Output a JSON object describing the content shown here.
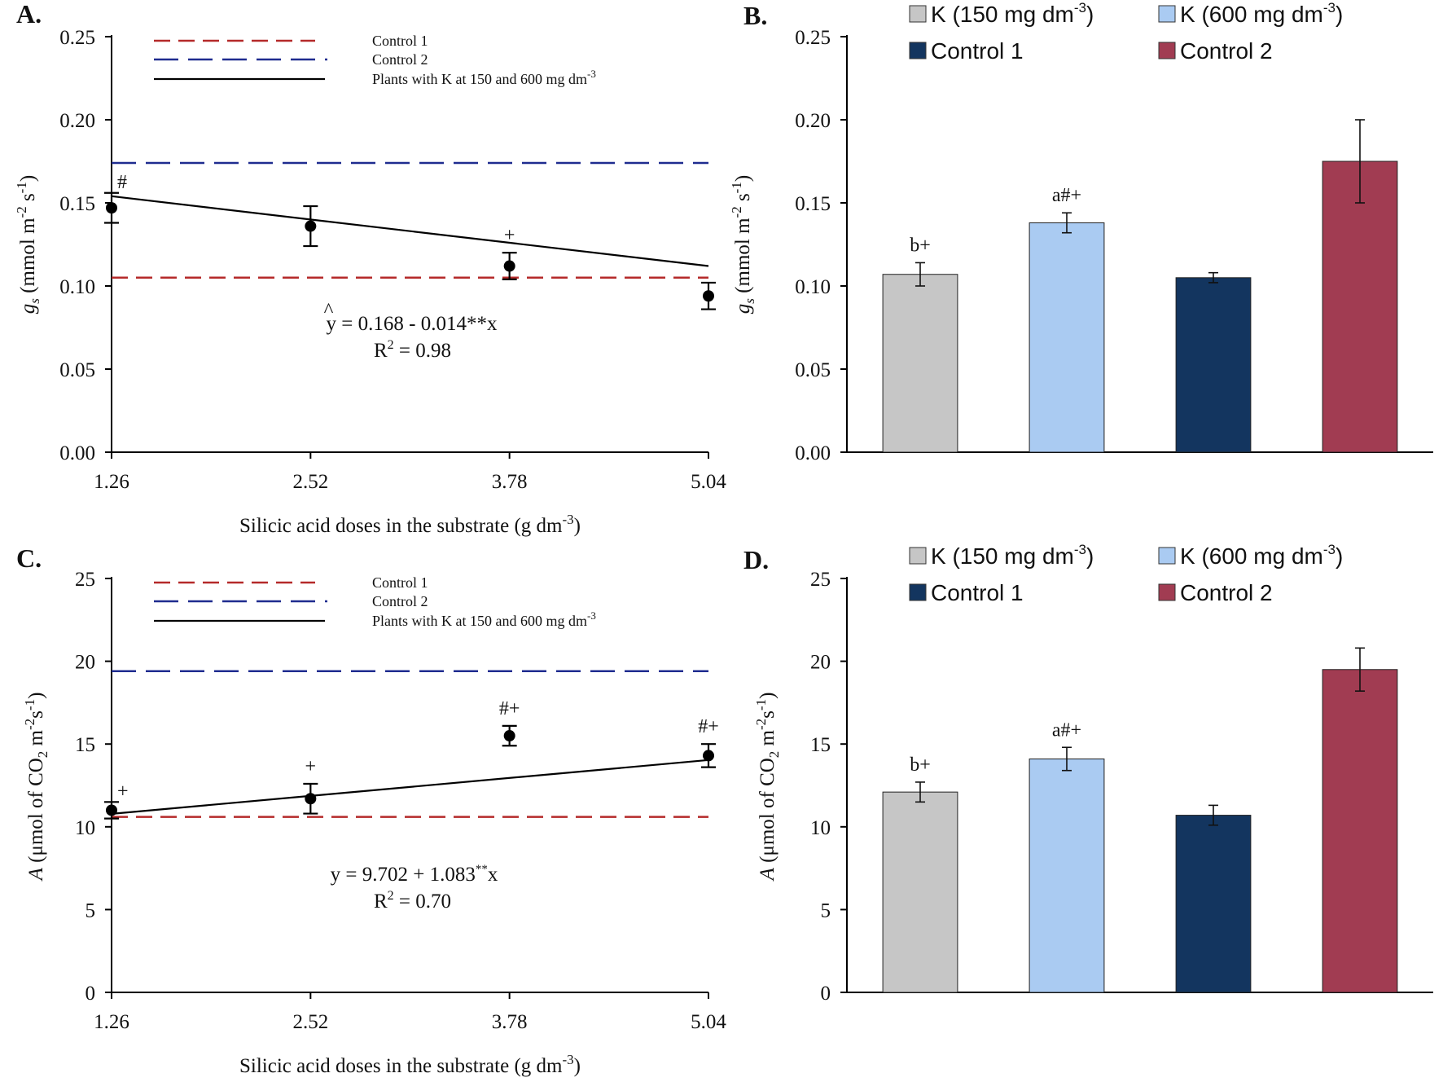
{
  "chart_data": [
    {
      "id": "A",
      "panel_label": "A.",
      "type": "scatter",
      "x": [
        1.26,
        2.52,
        3.78,
        5.04
      ],
      "xtick_labels": [
        "1.26",
        "2.52",
        "3.78",
        "5.04"
      ],
      "y": [
        0.147,
        0.136,
        0.112,
        0.094
      ],
      "yerr": [
        0.009,
        0.012,
        0.008,
        0.008
      ],
      "annotations": [
        "#",
        "",
        "+",
        ""
      ],
      "ylim": [
        0,
        0.25
      ],
      "yticks": [
        "0.00",
        "0.05",
        "0.10",
        "0.15",
        "0.20",
        "0.25"
      ],
      "xlabel": "Silicic acid doses in the substrate (g dm",
      "xlabel_sup": "-3",
      "xlabel_end": ")",
      "ylabel_sym": "g",
      "ylabel_sub": "s",
      "ylabel_rest": " (mmol  m",
      "ylabel_sup1": "-2",
      "ylabel_mid": " s",
      "ylabel_sup2": "-1",
      "ylabel_end": ")",
      "control1": 0.105,
      "control2": 0.174,
      "fit": {
        "intercept": 0.168,
        "slope": -0.014
      },
      "legend": [
        "Control 1",
        "Control 2",
        "Plants with K at 150 and 600 mg dm"
      ],
      "legend_sup": "-3",
      "equation": "y = 0.168 - 0.014**x",
      "equation_hat": "^",
      "r2_prefix": "R",
      "r2_sup": "2",
      "r2_value": " = 0.98"
    },
    {
      "id": "B",
      "panel_label": "B.",
      "type": "bar",
      "categories": [
        "K (150 mg dm-3)",
        "K (600 mg dm-3)",
        "Control 1",
        "Control 2"
      ],
      "values": [
        0.107,
        0.138,
        0.105,
        0.175
      ],
      "errors": [
        0.007,
        0.006,
        0.003,
        0.025
      ],
      "annotations": [
        "b+",
        "a#+",
        "",
        ""
      ],
      "colors": [
        "#c6c6c6",
        "#aacbf2",
        "#13355f",
        "#a13c52"
      ],
      "ylim": [
        0,
        0.25
      ],
      "yticks": [
        "0.00",
        "0.05",
        "0.10",
        "0.15",
        "0.20",
        "0.25"
      ],
      "ylabel_sym": "g",
      "ylabel_sub": "s",
      "ylabel_rest": " (mmol  m",
      "ylabel_sup1": "-2",
      "ylabel_mid": " s",
      "ylabel_sup2": "-1",
      "ylabel_end": ")",
      "legend": [
        {
          "text": "K (150 mg dm",
          "sup": "-3",
          "end": ")"
        },
        {
          "text": "K (600 mg dm",
          "sup": "-3",
          "end": ")"
        },
        {
          "text": "Control 1",
          "sup": "",
          "end": ""
        },
        {
          "text": "Control 2",
          "sup": "",
          "end": ""
        }
      ]
    },
    {
      "id": "C",
      "panel_label": "C.",
      "type": "scatter",
      "x": [
        1.26,
        2.52,
        3.78,
        5.04
      ],
      "xtick_labels": [
        "1.26",
        "2.52",
        "3.78",
        "5.04"
      ],
      "y": [
        11.0,
        11.7,
        15.5,
        14.3
      ],
      "yerr": [
        0.5,
        0.9,
        0.6,
        0.7
      ],
      "annotations": [
        "+",
        "+",
        "#+",
        "#+"
      ],
      "ylim": [
        0,
        25
      ],
      "yticks": [
        "0",
        "5",
        "10",
        "15",
        "20",
        "25"
      ],
      "xlabel": "Silicic acid doses in the substrate (g dm",
      "xlabel_sup": "-3",
      "xlabel_end": ")",
      "ylabel_sym": "A",
      "ylabel_rest": " (μmol of CO",
      "ylabel_sub2": "2",
      "ylabel_mid": " m",
      "ylabel_sup1": "-2",
      "ylabel_mid2": "s",
      "ylabel_sup2": "-1",
      "ylabel_end": ")",
      "control1": 10.6,
      "control2": 19.4,
      "fit": {
        "intercept": 9.702,
        "slope": 1.083
      },
      "legend": [
        "Control 1",
        "Control 2",
        "Plants with K at 150 and 600 mg dm"
      ],
      "legend_sup": "-3",
      "equation": "y = 9.702 + 1.083",
      "equation_sup": "**",
      "equation_end": "x",
      "r2_prefix": "R",
      "r2_sup": "2",
      "r2_value": " = 0.70"
    },
    {
      "id": "D",
      "panel_label": "D.",
      "type": "bar",
      "categories": [
        "K (150 mg dm-3)",
        "K (600 mg dm-3)",
        "Control 1",
        "Control 2"
      ],
      "values": [
        12.1,
        14.1,
        10.7,
        19.5
      ],
      "errors": [
        0.6,
        0.7,
        0.6,
        1.3
      ],
      "annotations": [
        "b+",
        "a#+",
        "",
        ""
      ],
      "colors": [
        "#c6c6c6",
        "#aacbf2",
        "#13355f",
        "#a13c52"
      ],
      "ylim": [
        0,
        25
      ],
      "yticks": [
        "0",
        "5",
        "10",
        "15",
        "20",
        "25"
      ],
      "ylabel_sym": "A",
      "ylabel_rest": " (μmol of CO",
      "ylabel_sub2": "2",
      "ylabel_mid": " m",
      "ylabel_sup1": "-2",
      "ylabel_mid2": "s",
      "ylabel_sup2": "-1",
      "ylabel_end": ")",
      "legend": [
        {
          "text": "K (150 mg dm",
          "sup": "-3",
          "end": ")"
        },
        {
          "text": "K (600 mg dm",
          "sup": "-3",
          "end": ")"
        },
        {
          "text": "Control 1",
          "sup": "",
          "end": ""
        },
        {
          "text": "Control 2",
          "sup": "",
          "end": ""
        }
      ]
    }
  ],
  "colors": {
    "control1_line": "#b52a2a",
    "control2_line": "#1f2c8f",
    "fit_line": "#000000"
  }
}
